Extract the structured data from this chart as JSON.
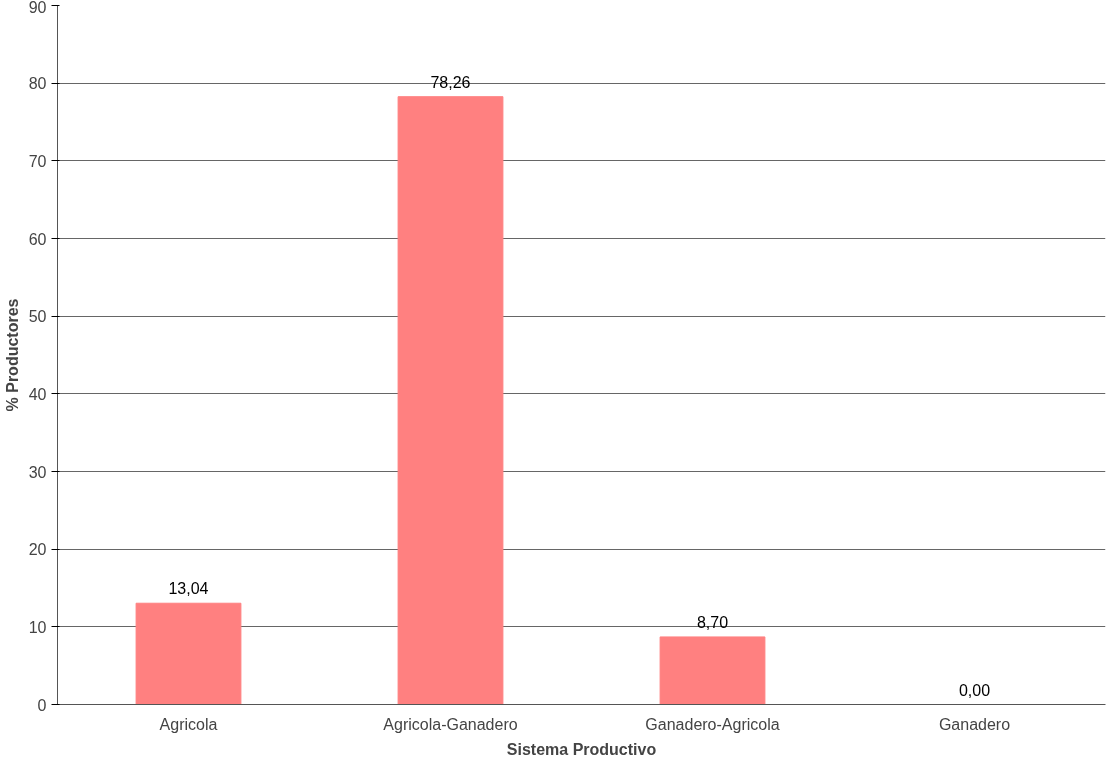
{
  "chart_data": {
    "type": "bar",
    "xlabel": "Sistema Productivo",
    "ylabel": "% Productores",
    "categories": [
      "Agricola",
      "Agricola-Ganadero",
      "Ganadero-Agricola",
      "Ganadero"
    ],
    "values": [
      13.04,
      78.26,
      8.7,
      0.0
    ],
    "value_labels": [
      "13,04",
      "78,26",
      "8,70",
      "0,00"
    ],
    "color": "#ff8080",
    "ylim": [
      0,
      90
    ],
    "yticks": [
      0,
      10,
      20,
      30,
      40,
      50,
      60,
      70,
      80,
      90
    ],
    "grid": "y"
  }
}
